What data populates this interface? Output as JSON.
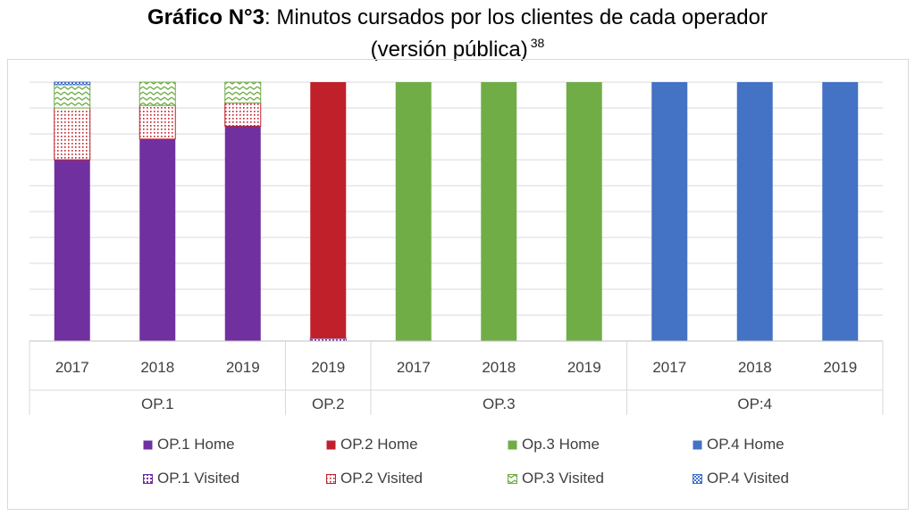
{
  "title": {
    "bold": "Gráfico N°3",
    "rest": ": Minutos cursados por los clientes de cada operador",
    "line2": "(versión pública)",
    "footnote": "38"
  },
  "chart_data": {
    "type": "bar",
    "stacked": true,
    "ylim": [
      0,
      100
    ],
    "y_tick_labels_visible": false,
    "gridlines": 10,
    "categories": [
      "2017",
      "2018",
      "2019",
      "2019",
      "2017",
      "2018",
      "2019",
      "2017",
      "2018",
      "2019"
    ],
    "groups": [
      {
        "label": "OP.1",
        "span": 3
      },
      {
        "label": "OP.2",
        "span": 1
      },
      {
        "label": "OP.3",
        "span": 3
      },
      {
        "label": "OP:4",
        "span": 3
      }
    ],
    "series": [
      {
        "name": "OP.1 Home",
        "color": "#7030a0",
        "pattern": "solid",
        "values": [
          70,
          78,
          83,
          0,
          0,
          0,
          0,
          0,
          0,
          0
        ]
      },
      {
        "name": "OP.1 Visited",
        "color": "#7030a0",
        "pattern": "dots",
        "values": [
          0,
          0,
          0,
          1,
          0,
          0,
          0,
          0,
          0,
          0
        ]
      },
      {
        "name": "OP.2 Home",
        "color": "#c0202a",
        "pattern": "solid",
        "values": [
          0,
          0,
          0,
          99,
          0,
          0,
          0,
          0,
          0,
          0
        ]
      },
      {
        "name": "OP.2 Visited",
        "color": "#c0202a",
        "pattern": "dots",
        "values": [
          20,
          13,
          9,
          0,
          0,
          0,
          0,
          0,
          0,
          0
        ]
      },
      {
        "name": "Op.3 Home",
        "color": "#70ad47",
        "pattern": "solid",
        "values": [
          0,
          0,
          0,
          0,
          100,
          100,
          100,
          0,
          0,
          0
        ]
      },
      {
        "name": "OP.3 Visited",
        "color": "#70ad47",
        "pattern": "waves",
        "values": [
          9,
          9,
          8,
          0,
          0,
          0,
          0,
          0,
          0,
          0
        ]
      },
      {
        "name": "OP.4 Home",
        "color": "#4472c4",
        "pattern": "solid",
        "values": [
          0,
          0,
          0,
          0,
          0,
          0,
          0,
          100,
          100,
          100
        ]
      },
      {
        "name": "OP.4 Visited",
        "color": "#4472c4",
        "pattern": "checker",
        "values": [
          1,
          0,
          0,
          0,
          0,
          0,
          0,
          0,
          0,
          0
        ]
      }
    ],
    "legend": [
      {
        "label": "OP.1 Home",
        "series": 0
      },
      {
        "label": "OP.2 Home",
        "series": 2
      },
      {
        "label": "Op.3 Home",
        "series": 4
      },
      {
        "label": "OP.4 Home",
        "series": 6
      },
      {
        "label": "OP.1 Visited",
        "series": 1
      },
      {
        "label": "OP.2 Visited",
        "series": 3
      },
      {
        "label": "OP.3 Visited",
        "series": 5
      },
      {
        "label": "OP.4 Visited",
        "series": 7
      }
    ]
  }
}
